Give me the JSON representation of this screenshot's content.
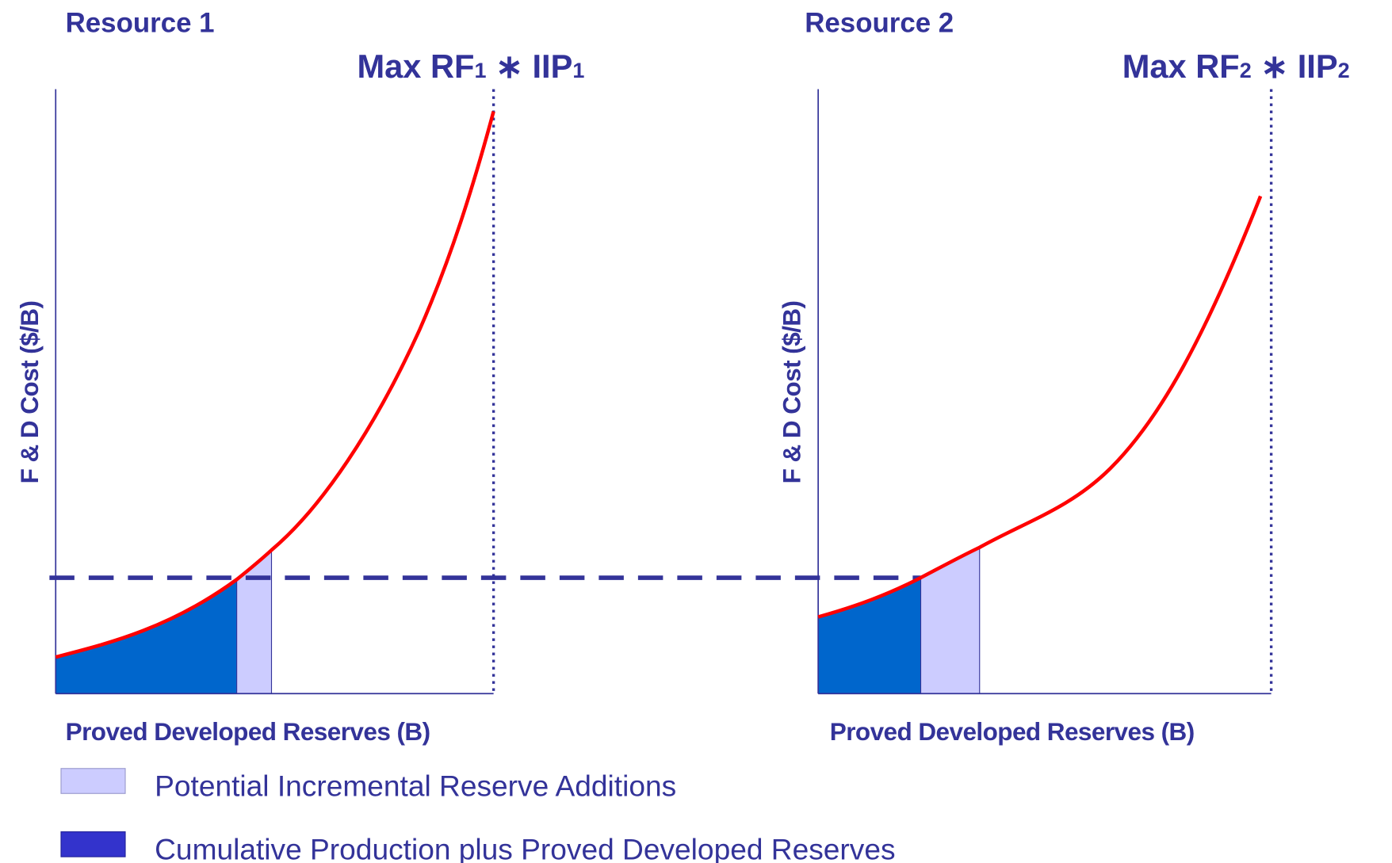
{
  "panels": [
    {
      "title": "Resource 1",
      "max_label": {
        "prefix": "Max RF",
        "sub1": "1",
        "mid": " ∗ IIP",
        "sub2": "1"
      },
      "y_axis_label": "F & D Cost ($/B)",
      "x_axis_label": "Proved Developed Reserves (B)"
    },
    {
      "title": "Resource 2",
      "max_label": {
        "prefix": "Max RF",
        "sub1": "2",
        "mid": " ∗ IIP",
        "sub2": "2"
      },
      "y_axis_label": "F & D Cost ($/B)",
      "x_axis_label": "Proved Developed Reserves (B)"
    }
  ],
  "legend": [
    {
      "label": "Potential Incremental Reserve Additions"
    },
    {
      "label": "Cumulative Production plus Proved Developed Reserves"
    }
  ]
}
